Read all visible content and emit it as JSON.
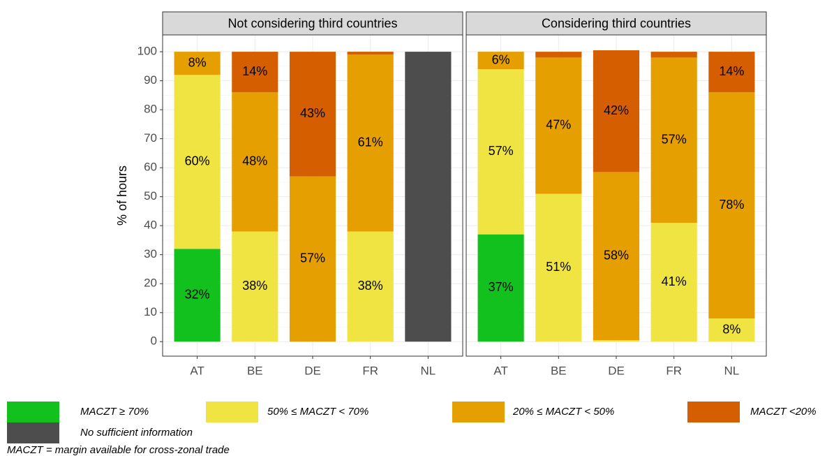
{
  "chart_data": [
    {
      "type": "stacked_bar",
      "title": "Not considering third countries",
      "ylabel": "% of hours",
      "categories": [
        "AT",
        "BE",
        "DE",
        "FR",
        "NL"
      ],
      "ylim": [
        -5,
        105.8
      ],
      "yticks": [
        0,
        10,
        20,
        30,
        40,
        50,
        60,
        70,
        80,
        90,
        100
      ],
      "grid": true,
      "series": [
        {
          "name": "MACZT ≥ 70%",
          "color": "#13c11e",
          "values": [
            32,
            0,
            0,
            0,
            0
          ],
          "value_labels": [
            "32%",
            null,
            null,
            null,
            null
          ]
        },
        {
          "name": "50% ≤ MACZT < 70%",
          "color": "#f0e442",
          "values": [
            60,
            38,
            0,
            38,
            0
          ],
          "value_labels": [
            "60%",
            "38%",
            null,
            "38%",
            null
          ]
        },
        {
          "name": "20% ≤ MACZT < 50%",
          "color": "#e69f00",
          "values": [
            8,
            48,
            57,
            61,
            0
          ],
          "value_labels": [
            "8%",
            "48%",
            "57%",
            "61%",
            null
          ]
        },
        {
          "name": "MACZT <20%",
          "color": "#d55e00",
          "values": [
            0,
            14,
            43,
            1,
            0
          ],
          "value_labels": [
            null,
            "14%",
            "43%",
            null,
            null
          ]
        },
        {
          "name": "No sufficient information",
          "color": "#4d4d4d",
          "values": [
            0,
            0,
            0,
            0,
            100
          ],
          "value_labels": [
            null,
            null,
            null,
            null,
            null
          ]
        }
      ]
    },
    {
      "type": "stacked_bar",
      "title": "Considering third countries",
      "categories": [
        "AT",
        "BE",
        "DE",
        "FR",
        "NL"
      ],
      "ylim": [
        -5,
        105.8
      ],
      "yticks": [
        0,
        10,
        20,
        30,
        40,
        50,
        60,
        70,
        80,
        90,
        100
      ],
      "grid": true,
      "series": [
        {
          "name": "MACZT ≥ 70%",
          "color": "#13c11e",
          "values": [
            37,
            0,
            0,
            0,
            0
          ],
          "value_labels": [
            "37%",
            null,
            null,
            null,
            null
          ]
        },
        {
          "name": "50% ≤ MACZT < 70%",
          "color": "#f0e442",
          "values": [
            57,
            51,
            0.5,
            41,
            8
          ],
          "value_labels": [
            "57%",
            "51%",
            null,
            "41%",
            "8%"
          ]
        },
        {
          "name": "20% ≤ MACZT < 50%",
          "color": "#e69f00",
          "values": [
            6,
            47,
            58,
            57,
            78
          ],
          "value_labels": [
            "6%",
            "47%",
            "58%",
            "57%",
            "78%"
          ]
        },
        {
          "name": "MACZT <20%",
          "color": "#d55e00",
          "values": [
            0,
            2,
            42,
            2,
            14
          ],
          "value_labels": [
            null,
            null,
            "42%",
            null,
            "14%"
          ]
        },
        {
          "name": "No sufficient information",
          "color": "#4d4d4d",
          "values": [
            0,
            0,
            0,
            0,
            0
          ],
          "value_labels": [
            null,
            null,
            null,
            null,
            null
          ]
        }
      ]
    }
  ],
  "footnote": "MACZT = margin available for cross-zonal trade"
}
